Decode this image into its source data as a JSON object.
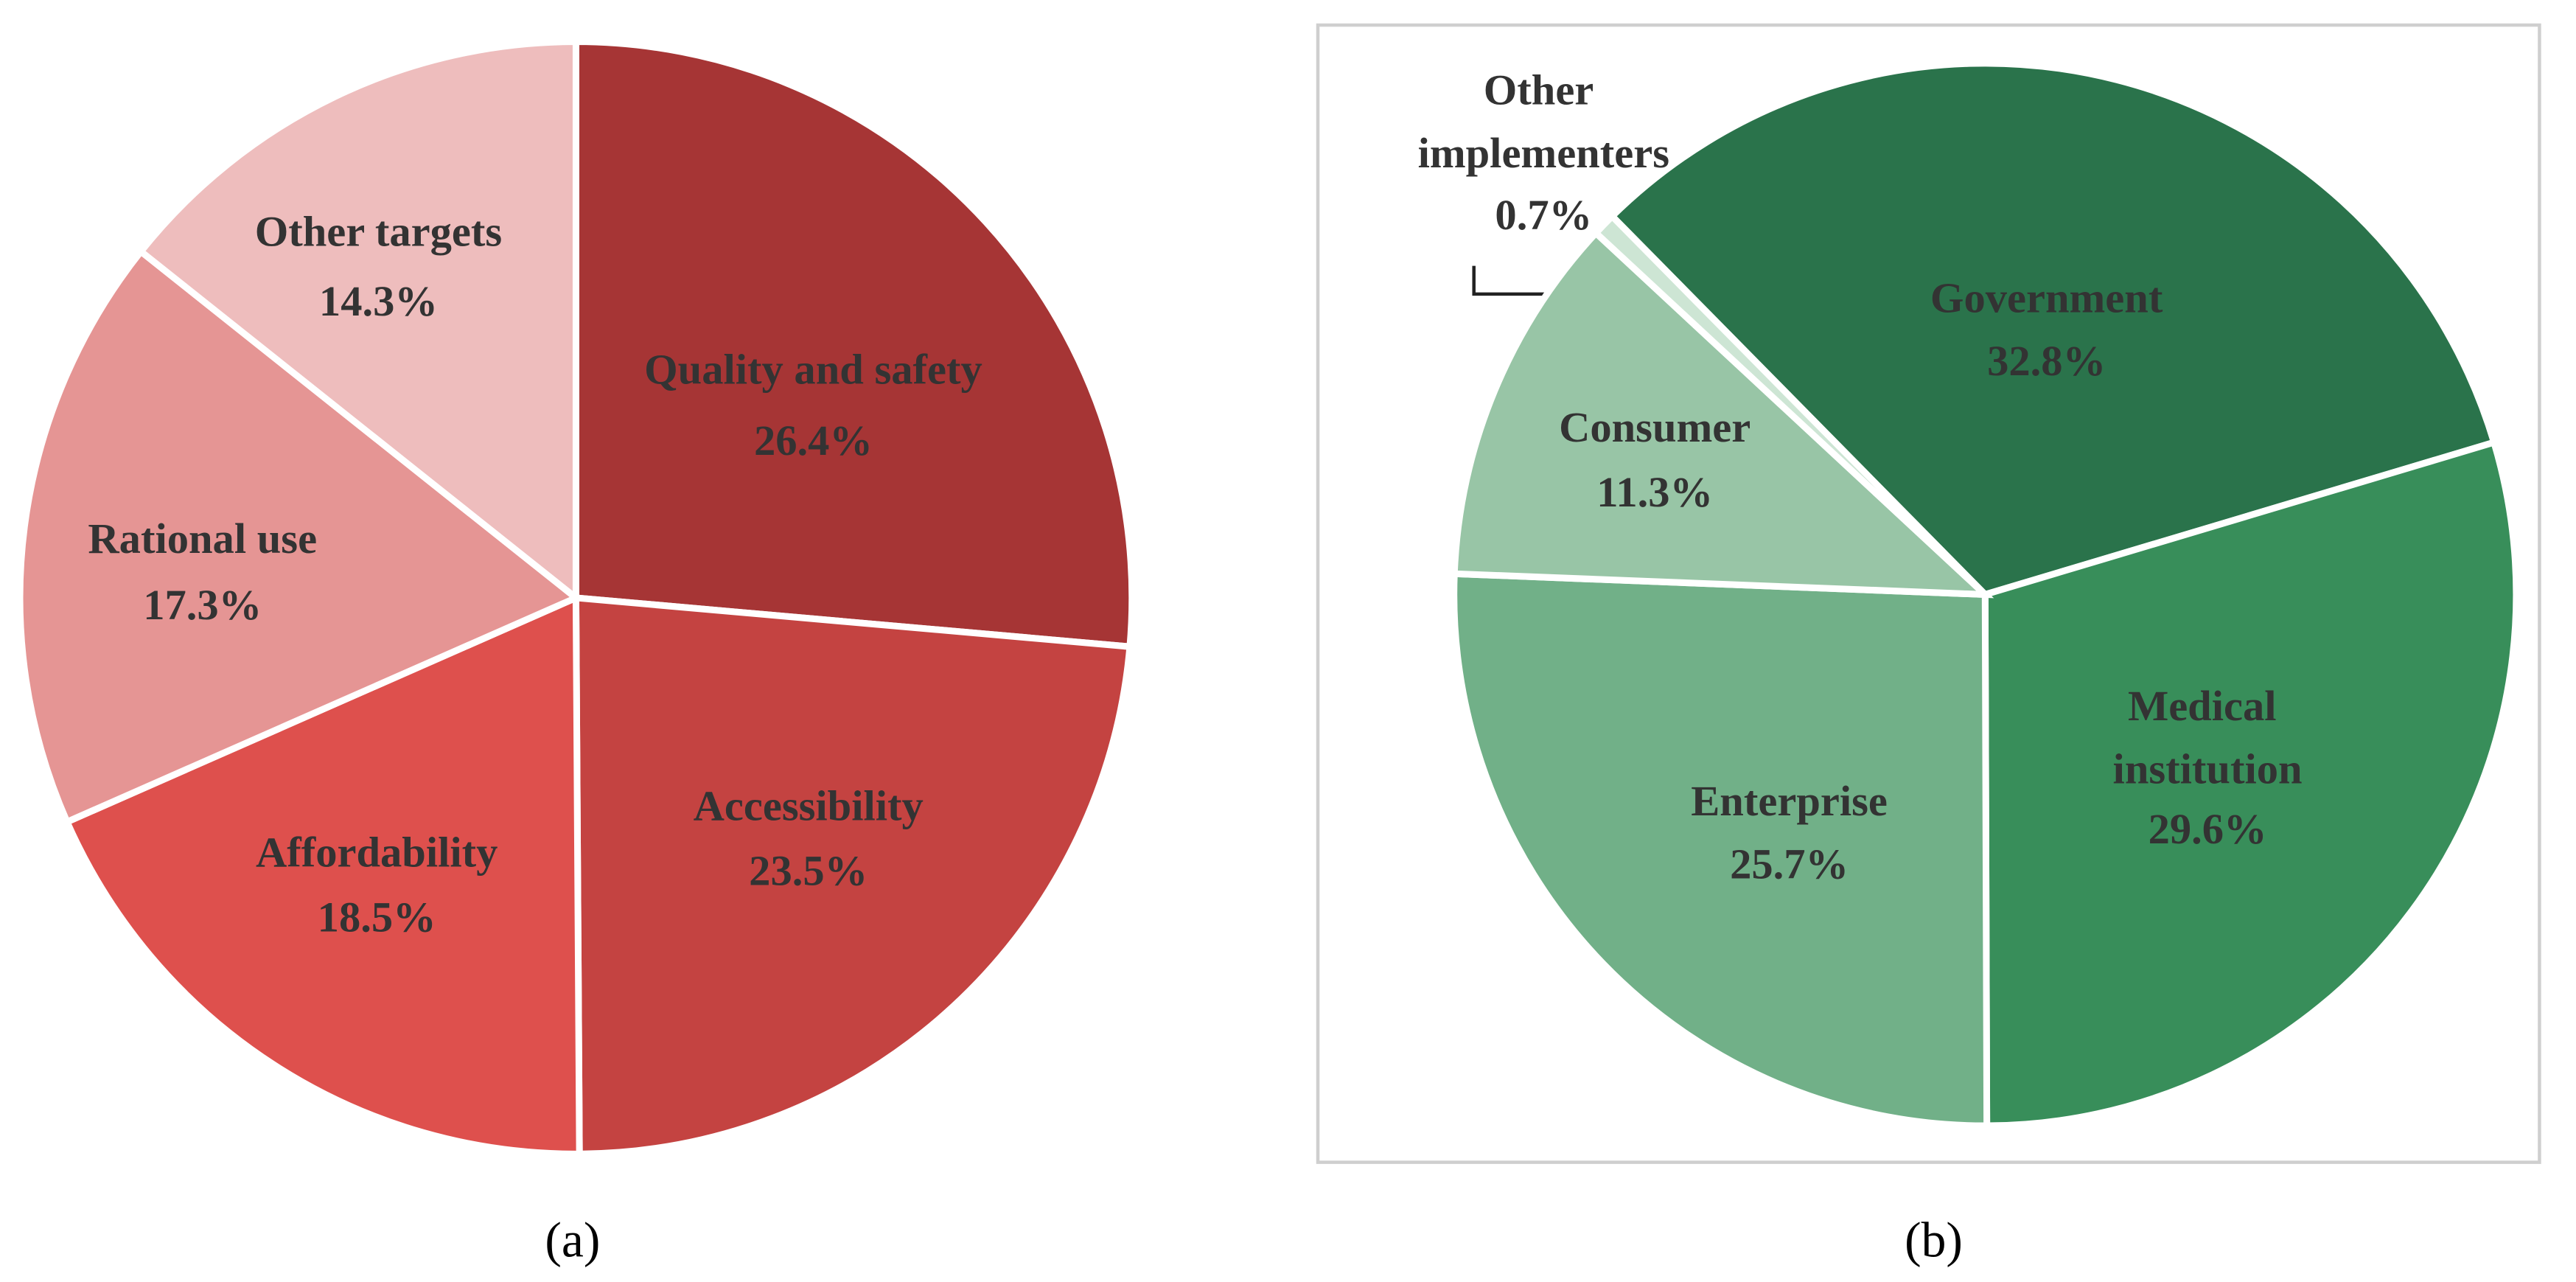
{
  "chart_data": [
    {
      "type": "pie",
      "title": "(a)",
      "categories": [
        "Quality and safety",
        "Accessibility",
        "Affordability",
        "Rational use",
        "Other targets"
      ],
      "values": [
        26.4,
        23.5,
        18.5,
        17.3,
        14.3
      ],
      "value_labels": [
        "26.4%",
        "23.5%",
        "18.5%",
        "17.3%",
        "14.3%"
      ],
      "colors": [
        "#a63535",
        "#c44341",
        "#de504d",
        "#e59594",
        "#eebdbd"
      ]
    },
    {
      "type": "pie",
      "title": "(b)",
      "categories": [
        "Government",
        "Medical institution",
        "Enterprise",
        "Consumer",
        "Other implementers"
      ],
      "values": [
        32.8,
        29.6,
        25.7,
        11.3,
        0.7
      ],
      "value_labels": [
        "32.8%",
        "29.6%",
        "25.7%",
        "11.3%",
        "0.7%"
      ],
      "colors": [
        "#2a734b",
        "#388e5a",
        "#71b088",
        "#98c5a6",
        "#cde5d4"
      ]
    }
  ]
}
